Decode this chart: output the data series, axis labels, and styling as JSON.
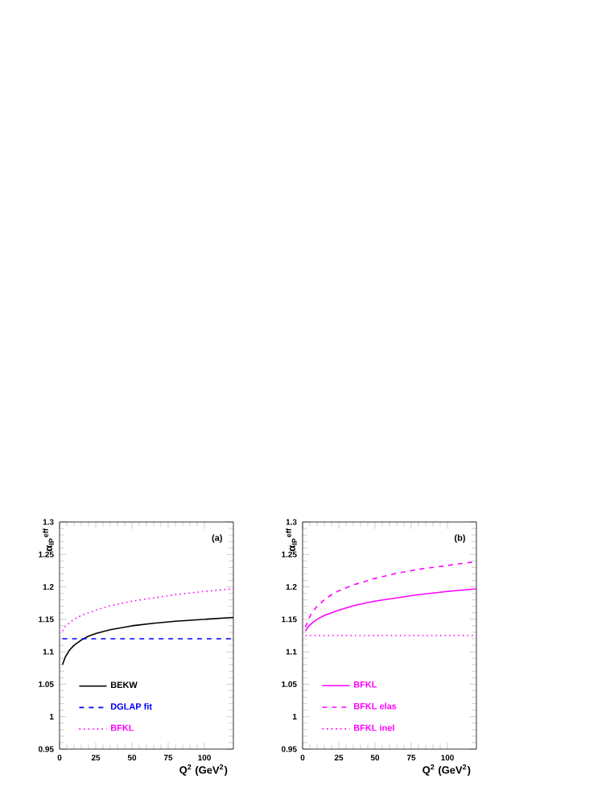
{
  "chart_data": [
    {
      "type": "line",
      "xlabel": "Q$^{2}$ (GeV$^{2}$)",
      "ylabel": "α$_{IP}$$^{eff}$",
      "annotations": [
        "(a)"
      ],
      "xlim": [
        0,
        120
      ],
      "ylim": [
        0.95,
        1.3
      ],
      "xticks": [
        0,
        25,
        50,
        75,
        100
      ],
      "yticks": [
        0.95,
        1,
        1.05,
        1.1,
        1.15,
        1.2,
        1.25,
        1.3
      ],
      "legend": "bottom left",
      "series": [
        {
          "name": "BEKW",
          "color": "#000000",
          "line_style": "solid",
          "x": [
            2,
            4,
            7,
            10,
            15,
            20,
            25,
            35,
            50,
            65,
            80,
            100,
            120
          ],
          "values": [
            1.08,
            1.092,
            1.103,
            1.11,
            1.118,
            1.124,
            1.128,
            1.134,
            1.14,
            1.144,
            1.147,
            1.15,
            1.153
          ]
        },
        {
          "name": "DGLAP fit",
          "color": "#0000ff",
          "line_style": "dashed",
          "x": [
            2,
            120
          ],
          "values": [
            1.12,
            1.12
          ]
        },
        {
          "name": "BFKL",
          "color": "#ff00ff",
          "line_style": "dotted",
          "x": [
            2,
            4,
            7,
            10,
            15,
            20,
            25,
            35,
            50,
            65,
            80,
            100,
            120
          ],
          "values": [
            1.132,
            1.139,
            1.145,
            1.15,
            1.156,
            1.16,
            1.164,
            1.171,
            1.178,
            1.183,
            1.188,
            1.193,
            1.197
          ]
        }
      ]
    },
    {
      "type": "line",
      "xlabel": "Q$^{2}$ (GeV$^{2}$)",
      "ylabel": "α$_{IP}$$^{eff}$",
      "annotations": [
        "(b)"
      ],
      "xlim": [
        0,
        120
      ],
      "ylim": [
        0.95,
        1.3
      ],
      "xticks": [
        0,
        25,
        50,
        75,
        100
      ],
      "yticks": [
        0.95,
        1,
        1.05,
        1.1,
        1.15,
        1.2,
        1.25,
        1.3
      ],
      "legend": "bottom left",
      "series": [
        {
          "name": "BFKL",
          "color": "#ff00ff",
          "line_style": "solid",
          "x": [
            2,
            4,
            7,
            10,
            15,
            20,
            25,
            35,
            50,
            65,
            80,
            100,
            120
          ],
          "values": [
            1.132,
            1.139,
            1.145,
            1.15,
            1.156,
            1.16,
            1.164,
            1.171,
            1.178,
            1.183,
            1.188,
            1.193,
            1.197
          ]
        },
        {
          "name": "BFKL elas",
          "color": "#ff00ff",
          "line_style": "dashed",
          "x": [
            2,
            4,
            7,
            10,
            15,
            20,
            25,
            35,
            50,
            65,
            80,
            100,
            120
          ],
          "values": [
            1.138,
            1.15,
            1.162,
            1.17,
            1.18,
            1.188,
            1.194,
            1.203,
            1.213,
            1.221,
            1.227,
            1.233,
            1.239
          ]
        },
        {
          "name": "BFKL inel",
          "color": "#ff00ff",
          "line_style": "dotted",
          "x": [
            2,
            120
          ],
          "values": [
            1.125,
            1.125
          ]
        }
      ]
    }
  ]
}
